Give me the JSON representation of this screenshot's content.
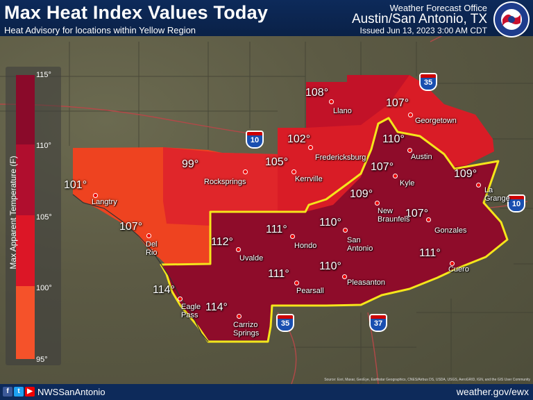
{
  "header": {
    "title": "Max Heat Index Values Today",
    "subtitle": "Heat Advisory for locations within Yellow Region",
    "office": "Weather Forecast Office",
    "location": "Austin/San Antonio, TX",
    "issued": "Issued Jun 13, 2023 3:00 AM CDT"
  },
  "legend": {
    "label": "Max Apparent Temperature (F)",
    "ticks": [
      "115°",
      "110°",
      "105°",
      "100°",
      "95°"
    ],
    "colors": [
      "#8a0a2a",
      "#a10c30",
      "#d8142a",
      "#f23a1c",
      "#f5522a"
    ]
  },
  "map_values": {
    "llano": "108°",
    "georgetown": "107°",
    "fredericksburg": "102°",
    "austin": "110°",
    "rocksprings": "99°",
    "kerrville": "105°",
    "kyle": "107°",
    "lagrange": "109°",
    "langtry": "101°",
    "newbraunfels": "109°",
    "gonzales": "107°",
    "delrio": "107°",
    "hondo": "111°",
    "sanantonio": "110°",
    "uvalde": "112°",
    "cuero": "111°",
    "pearsall": "111°",
    "pleasanton": "110°",
    "eaglepass": "114°",
    "carrizo": "114°"
  },
  "cities": {
    "llano": "Llano",
    "georgetown": "Georgetown",
    "fredericksburg": "Fredericksburg",
    "austin": "Austin",
    "rocksprings": "Rocksprings",
    "kerrville": "Kerrville",
    "kyle": "Kyle",
    "lagrange": "La Grange",
    "langtry": "Langtry",
    "newbraunfels": "New Braunfels",
    "gonzales": "Gonzales",
    "delrio": "Del Rio",
    "hondo": "Hondo",
    "sanantonio": "San Antonio",
    "uvalde": "Uvalde",
    "cuero": "Cuero",
    "pearsall": "Pearsall",
    "pleasanton": "Pleasanton",
    "eaglepass": "Eagle Pass",
    "carrizo": "Carrizo Springs"
  },
  "highways": {
    "i35_north": "35",
    "i10_west": "10",
    "i10_east": "10",
    "i35_south": "35",
    "i37": "37"
  },
  "footer": {
    "handle": "NWSSanAntonio",
    "website": "weather.gov/ewx",
    "attribution": "Source: Esri, Maxar, GeoEye, Earthstar Geographics, CNES/Airbus DS, USDA, USGS, AeroGRID, IGN, and the GIS User Community"
  },
  "colors": {
    "header_bg": "#0d2a5a",
    "advisory_outline": "#f5e51b",
    "zone_dark": "#8a0a2a",
    "zone_mid": "#b5102e",
    "zone_light": "#e02a22",
    "zone_orange": "#f04a24"
  }
}
